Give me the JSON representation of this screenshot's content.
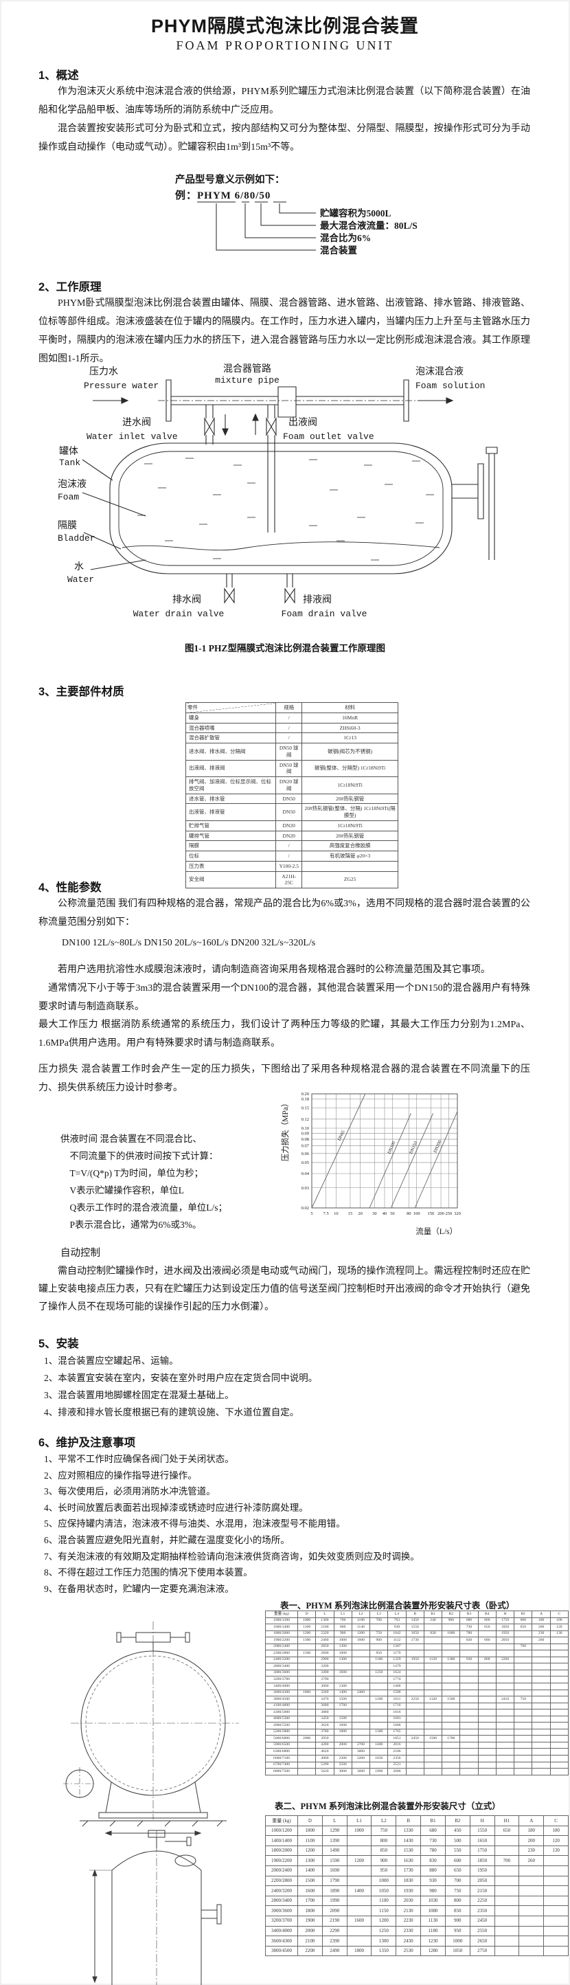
{
  "page": {
    "title": "PHYM隔膜式泡沫比例混合装置",
    "subtitle": "FOAM PROPORTIONING UNIT"
  },
  "section1": {
    "heading": "1、概述",
    "para1": "作为泡沫灭火系统中泡沫混合液的供给源，PHYM系列贮罐压力式泡沫比例混合装置（以下简称混合装置）在油船和化学品船甲板、油库等场所的消防系统中广泛应用。",
    "para2": "混合装置按安装形式可分为卧式和立式，按内部结构又可分为整体型、分隔型、隔膜型，按操作形式可分为手动操作或自动操作（电动或气动）。贮罐容积由1m³到15m³不等。"
  },
  "model_example": {
    "intro": "产品型号意义示例如下：",
    "example": "例：PHYM 6/80/50",
    "callouts": [
      {
        "text": "贮罐容积为5000L"
      },
      {
        "text": "最大混合液流量：80L/S"
      },
      {
        "text": "混合比为6%"
      },
      {
        "text": "混合装置"
      }
    ]
  },
  "section2": {
    "heading": "2、工作原理",
    "para": "PHYM卧式隔膜型泡沫比例混合装置由罐体、隔膜、混合器管路、进水管路、出液管路、排水管路、排液管路、位标等部件组成。泡沫液盛装在位于罐内的隔膜内。在工作时，压力水进入罐内，当罐内压力上升至与主管路水压力平衡时，隔膜内的泡沫液在罐内压力水的挤压下，进入混合器管路与压力水以一定比例形成泡沫混合液。其工作原理图如图1-1所示。"
  },
  "figure": {
    "caption": "图1-1 PHZ型隔膜式泡沫比例混合装置工作原理图",
    "labels": {
      "mixture_pipe": {
        "zh": "混合器管路",
        "en": "mixture pipe"
      },
      "pressure_water": {
        "zh": "压力水",
        "en": "Pressure water"
      },
      "foam_solution": {
        "zh": "泡沫混合液",
        "en": "Foam solution"
      },
      "water_inlet_valve": {
        "zh": "进水阀",
        "en": "Water inlet valve"
      },
      "foam_outlet_valve": {
        "zh": "出液阀",
        "en": "Foam outlet valve"
      },
      "tank": {
        "zh": "罐体",
        "en": "Tank"
      },
      "foam": {
        "zh": "泡沫液",
        "en": "Foam"
      },
      "bladder": {
        "zh": "隔膜",
        "en": "Bladder"
      },
      "water": {
        "zh": "水",
        "en": "Water"
      },
      "water_drain_valve": {
        "zh": "排水阀",
        "en": "Water drain valve"
      },
      "foam_drain_valve": {
        "zh": "排液阀",
        "en": "Foam drain valve"
      }
    }
  },
  "section3": {
    "heading": "3、主要部件材质",
    "materials_table": {
      "headers": [
        "零件",
        "规格",
        "材料"
      ],
      "rows": [
        [
          "罐身",
          "/",
          "16MnR"
        ],
        [
          "混合器喷嘴",
          "/",
          "ZHSi60-3"
        ],
        [
          "混合器扩散管",
          "/",
          "1Cr13"
        ],
        [
          "进水阀、排水阀、分隔阀",
          "DN50 球阀",
          "碳钢(阀芯为不锈钢)"
        ],
        [
          "出液阀、排液阀",
          "DN50 球阀",
          "碳钢(整体、分隔型) 1Cr18Ni9Ti"
        ],
        [
          "排气阀、加液阀、位标显示阀、位标放空阀",
          "DN20 球阀",
          "1Cr18Ni9Ti"
        ],
        [
          "进水管、排水管",
          "DN50",
          "20#热轧钢管"
        ],
        [
          "出液管、排液管",
          "DN50",
          "20#热轧钢管(整体、分隔) 1Cr18Ni9Ti(隔膜型)"
        ],
        [
          "贮排气管",
          "DN20",
          "1Cr18Ni9Ti"
        ],
        [
          "罐排气管",
          "DN20",
          "20#热轧钢管"
        ],
        [
          "隔膜",
          "/",
          "高强度复合橡胶膜"
        ],
        [
          "位标",
          "/",
          "有机玻璃管 φ20×3"
        ],
        [
          "压力表",
          "Y100-2.5",
          ""
        ],
        [
          "安全阀",
          "A21H-25C",
          "ZG25"
        ]
      ]
    }
  },
  "section4": {
    "heading": "4、性能参数",
    "para1": "公称流量范围  我们有四种规格的混合器，常规产品的混合比为6%或3%，选用不同规格的混合器时混合装置的公称流量范围分别如下：",
    "flow_line": "DN100  12L/s~80L/s    DN150  20L/s~160L/s    DN200  32L/s~320L/s",
    "para2": "若用户选用抗溶性水成膜泡沫液时，请向制造商咨询采用各规格混合器时的公称流量范围及其它事项。",
    "para3": "通常情况下小于等于3m3的混合装置采用一个DN100的混合器，其他混合装置采用一个DN150的混合器用户有特殊要求时请与制造商联系。",
    "para4": "最大工作压力 根据消防系统通常的系统压力，我们设计了两种压力等级的贮罐，其最大工作压力分别为1.2MPa、1.6MPa供用户选用。用户有特殊要求时请与制造商联系。",
    "para5": "压力损失  混合装置工作时会产生一定的压力损失，下图给出了采用各种规格混合器的混合装置在不同流量下的压力、损失供系统压力设计时参考。",
    "supply_lines": [
      "供液时间  混合装置在不同混合比、",
      "不同流量下的供液时间按下式计算：",
      "T=V/(Q*p)    T为时间，单位为秒；",
      "V表示贮罐操作容积，单位L",
      "Q表示工作时的混合液流量，单位L/s；",
      "P表示混合比，通常为6%或3%。"
    ],
    "auto_heading": "自动控制",
    "auto_para": "需自动控制贮罐操作时，进水阀及出液阀必须是电动或气动阀门，现场的操作流程同上。需远程控制时还应在贮罐上安装电接点压力表，只有在贮罐压力达到设定压力值的信号送至阀门控制柜时开出液阀的命令才开始执行（避免了操作人员不在现场可能的误操作引起的压力水倒灌）。"
  },
  "chart_data": {
    "type": "line",
    "title": "",
    "xlabel": "流量（L/s）",
    "ylabel": "压力损失（MPa）",
    "x_scale": "log",
    "y_scale": "log",
    "xlim": [
      5,
      320
    ],
    "ylim": [
      0.02,
      0.2
    ],
    "x_ticks": [
      "5",
      "7.5",
      "10",
      "15",
      "20",
      "30",
      "40",
      "50",
      "80",
      "100",
      "150",
      "200",
      "250",
      "320"
    ],
    "y_ticks": [
      "0.02",
      "0.03",
      "0.04",
      "0.05",
      "0.06",
      "0.07",
      "0.08",
      "0.09",
      "0.10",
      "0.12",
      "0.15",
      "0.18",
      "0.20"
    ],
    "grid": true,
    "legend_position": "on-line",
    "series": [
      {
        "name": "DN65",
        "points": [
          [
            5,
            0.02
          ],
          [
            23,
            0.2
          ]
        ]
      },
      {
        "name": "DN100",
        "points": [
          [
            26,
            0.02
          ],
          [
            85,
            0.135
          ]
        ]
      },
      {
        "name": "DN150",
        "points": [
          [
            48,
            0.02
          ],
          [
            160,
            0.135
          ]
        ]
      },
      {
        "name": "DN200",
        "points": [
          [
            95,
            0.02
          ],
          [
            320,
            0.14
          ]
        ]
      }
    ]
  },
  "section5": {
    "heading": "5、安装",
    "items": [
      "1、混合装置应空罐起吊、运输。",
      "2、本装置宜安装在室内，安装在室外时用户应在定货合同中说明。",
      "3、混合装置用地脚螺栓固定在混凝土基础上。",
      "4、排液和排水管长度根据已有的建筑设施、下水道位置自定。"
    ]
  },
  "section6": {
    "heading": "6、维护及注意事项",
    "items": [
      "1、平常不工作时应确保各阀门处于关闭状态。",
      "2、应对照相应的操作指导进行操作。",
      "3、每次使用后，必须用消防水冲洗管道。",
      "4、长时间放置后表面若出现掉漆或锈迹时应进行补漆防腐处理。",
      "5、应保持罐内清洁，泡沫液不得与油类、水混用，泡沫液型号不能用错。",
      "6、混合装置应避免阳光直射，并贮藏在温度变化小的场所。",
      "7、有关泡沫液的有效期及定期抽样检验请向泡沫液供货商咨询，如失效变质则应及时调换。",
      "8、不得在超过工作压力范围的情况下使用本装置。",
      "9、在备用状态时，贮罐内一定要充满泡沫液。"
    ]
  },
  "table1": {
    "caption": "表一、PHYM 系列泡沫比例混合装置外形安装尺寸表（卧式）",
    "headers": [
      "重量 (kg)",
      "D",
      "L",
      "L1",
      "L2",
      "L3",
      "L4",
      "B",
      "B1",
      "B2",
      "B3",
      "B4",
      "H",
      "H1",
      "A",
      "C"
    ],
    "rows": [
      [
        "1000/1200",
        "1000",
        "1360",
        "700",
        "1100",
        "700",
        "763",
        "1450",
        "240",
        "900",
        "680",
        "600",
        "1750",
        "600",
        "180",
        "100"
      ],
      [
        "1600/1400",
        "1100",
        "2100",
        "800",
        "1140",
        "",
        "930",
        "1550",
        "",
        "",
        "730",
        "650",
        "1850",
        "650",
        "200",
        "120"
      ],
      [
        "1800/2000",
        "1200",
        "2320",
        "900",
        "1200",
        "750",
        "1042",
        "1650",
        "820",
        "1000",
        "780",
        "",
        "1950",
        "",
        "230",
        "130"
      ],
      [
        "1900/2200",
        "1300",
        "2460",
        "1000",
        "1600",
        "900",
        "1112",
        "1730",
        "",
        "",
        "830",
        "680",
        "2050",
        "",
        "260",
        ""
      ],
      [
        "2000/2400",
        "",
        "2850",
        "1300",
        "",
        "",
        "1307",
        "",
        "",
        "",
        "",
        "",
        "",
        "700",
        "",
        ""
      ],
      [
        "2200/2800",
        "1500",
        "2600",
        "1000",
        "",
        "950",
        "1179",
        "",
        "",
        "",
        "",
        "",
        "",
        "",
        "",
        ""
      ],
      [
        "2400/3200",
        "",
        "2900",
        "1300",
        "",
        "1100",
        "1329",
        "1950",
        "1120",
        "1300",
        "930",
        "800",
        "2260",
        "",
        "",
        ""
      ],
      [
        "2800/3400",
        "",
        "3200",
        "",
        "",
        "",
        "1479",
        "",
        "",
        "",
        "",
        "",
        "",
        "",
        "",
        ""
      ],
      [
        "3000/3600",
        "",
        "3490",
        "1600",
        "",
        "1250",
        "1624",
        "",
        "",
        "",
        "",
        "",
        "",
        "",
        "",
        ""
      ],
      [
        "3200/3700",
        "",
        "3790",
        "",
        "",
        "",
        "1774",
        "",
        "",
        "",
        "",
        "",
        "",
        "",
        "",
        ""
      ],
      [
        "3400/4000",
        "",
        "3060",
        "1300",
        "",
        "",
        "1406",
        "",
        "",
        "",
        "",
        "",
        "",
        "",
        "",
        ""
      ],
      [
        "3600/4300",
        "1800",
        "3260",
        "1400",
        "2400",
        "",
        "1506",
        "",
        "",
        "",
        "",
        "",
        "",
        "",
        "",
        ""
      ],
      [
        "3800/4500",
        "",
        "3470",
        "1500",
        "",
        "1200",
        "1611",
        "2250",
        "1320",
        "1500",
        "",
        "",
        "2410",
        "750",
        "",
        ""
      ],
      [
        "4100/4800",
        "",
        "3680",
        "1700",
        "",
        "",
        "1716",
        "",
        "",
        "",
        "",
        "",
        "",
        "",
        "",
        ""
      ],
      [
        "4300/5000",
        "",
        "3880",
        "",
        "",
        "",
        "1816",
        "",
        "",
        "",
        "",
        "",
        "",
        "",
        "",
        ""
      ],
      [
        "4600/5300",
        "",
        "3450",
        "1500",
        "",
        "",
        "1601",
        "",
        "",
        "",
        "",
        "",
        "",
        "",
        "",
        ""
      ],
      [
        "4900/5500",
        "",
        "3620",
        "1600",
        "",
        "",
        "1686",
        "",
        "",
        "",
        "",
        "",
        "",
        "",
        "",
        ""
      ],
      [
        "5200/5800",
        "",
        "3780",
        "1800",
        "",
        "1300",
        "1765",
        "",
        "",
        "",
        "",
        "",
        "",
        "",
        "",
        ""
      ],
      [
        "5600/6000",
        "2000",
        "3950",
        "",
        "",
        "",
        "1851",
        "2450",
        "1500",
        "1700",
        "",
        "",
        "",
        "",
        "",
        ""
      ],
      [
        "5900/6500",
        "",
        "4280",
        "2000",
        "2700",
        "1400",
        "2016",
        "",
        "",
        "",
        "",
        "",
        "",
        "",
        "",
        ""
      ],
      [
        "6300/6800",
        "",
        "4620",
        "",
        "3000",
        "",
        "2186",
        "",
        "",
        "",
        "",
        "",
        "",
        "",
        "",
        ""
      ],
      [
        "6600/7100",
        "",
        "4960",
        "2300",
        "3200",
        "1650",
        "2356",
        "",
        "",
        "",
        "",
        "",
        "",
        "",
        "",
        ""
      ],
      [
        "6700/7400",
        "",
        "5290",
        "2500",
        "",
        "",
        "2521",
        "",
        "",
        "",
        "",
        "",
        "",
        "",
        "",
        ""
      ],
      [
        "6800/7500",
        "",
        "5620",
        "3000",
        "3600",
        "1900",
        "2686",
        "",
        "",
        "",
        "",
        "",
        "",
        "",
        "",
        ""
      ]
    ]
  },
  "table2": {
    "caption": "表二、PHYM 系列泡沫比例混合装置外形安装尺寸（立式）",
    "headers": [
      "重量 (kg)",
      "D",
      "L",
      "L1",
      "L2",
      "B",
      "B1",
      "B2",
      "H",
      "H1",
      "A",
      "C"
    ],
    "rows": [
      [
        "1000/1200",
        "1000",
        "1290",
        "1000",
        "750",
        "1330",
        "680",
        "450",
        "1550",
        "650",
        "180",
        "100"
      ],
      [
        "1400/1400",
        "1100",
        "1390",
        "",
        "800",
        "1430",
        "730",
        "500",
        "1650",
        "",
        "200",
        "120"
      ],
      [
        "1800/2000",
        "1200",
        "1490",
        "",
        "850",
        "1530",
        "780",
        "550",
        "1750",
        "",
        "230",
        "130"
      ],
      [
        "1900/2200",
        "1300",
        "1590",
        "1200",
        "900",
        "1630",
        "830",
        "600",
        "1850",
        "700",
        "260",
        ""
      ],
      [
        "2000/2400",
        "1400",
        "1690",
        "",
        "950",
        "1730",
        "880",
        "650",
        "1950",
        "",
        "",
        ""
      ],
      [
        "2200/2800",
        "1500",
        "1790",
        "",
        "1000",
        "1830",
        "930",
        "700",
        "2050",
        "",
        "",
        ""
      ],
      [
        "2400/3200",
        "1600",
        "1890",
        "1400",
        "1050",
        "1930",
        "980",
        "750",
        "2150",
        "",
        "",
        ""
      ],
      [
        "2800/3400",
        "1700",
        "1990",
        "",
        "1100",
        "2030",
        "1030",
        "800",
        "2250",
        "",
        "",
        ""
      ],
      [
        "3000/3600",
        "1800",
        "2090",
        "",
        "1150",
        "2130",
        "1080",
        "850",
        "2350",
        "",
        "",
        ""
      ],
      [
        "3200/3700",
        "1900",
        "2190",
        "1600",
        "1200",
        "2230",
        "1130",
        "900",
        "2450",
        "",
        "",
        ""
      ],
      [
        "3400/4000",
        "2000",
        "2290",
        "",
        "1250",
        "2330",
        "1180",
        "950",
        "2550",
        "",
        "",
        ""
      ],
      [
        "3600/4300",
        "2100",
        "2390",
        "",
        "1300",
        "2430",
        "1230",
        "1000",
        "2650",
        "",
        "",
        ""
      ],
      [
        "3800/4500",
        "2200",
        "2490",
        "1800",
        "1350",
        "2530",
        "1280",
        "1050",
        "2750",
        "",
        "",
        ""
      ]
    ]
  }
}
